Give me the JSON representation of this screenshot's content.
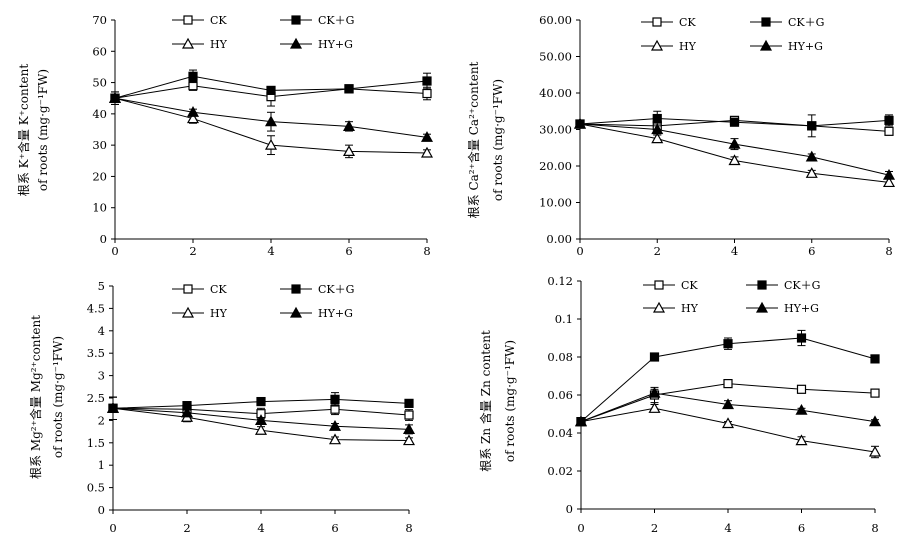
{
  "chart_data": [
    {
      "type": "line",
      "x": [
        0,
        2,
        4,
        6,
        8
      ],
      "ylim": [
        0,
        70
      ],
      "yticks": [
        "0",
        "10",
        "20",
        "30",
        "40",
        "50",
        "60",
        "70"
      ],
      "xticks": [
        "0",
        "2",
        "4",
        "6",
        "8"
      ],
      "ylabel_line1": "根系 K⁺含量 K⁺content",
      "ylabel_line2": "of roots (mg·g⁻¹FW)",
      "series": [
        {
          "name": "CK",
          "marker": "square-open",
          "values": [
            45,
            49,
            45.5,
            48,
            46.5
          ],
          "err": [
            2,
            1.5,
            3,
            1,
            2
          ]
        },
        {
          "name": "CK＋G",
          "marker": "square-filled",
          "values": [
            45,
            52,
            47.5,
            48,
            50.5
          ],
          "err": [
            2,
            2,
            1,
            1,
            2.5
          ]
        },
        {
          "name": "HY",
          "marker": "triangle-open",
          "values": [
            45,
            38.5,
            30,
            28,
            27.5
          ],
          "err": [
            2,
            1.5,
            3,
            2,
            1
          ]
        },
        {
          "name": "HY+G",
          "marker": "triangle-filled",
          "values": [
            45,
            40.5,
            37.5,
            36,
            32.5
          ],
          "err": [
            2,
            1,
            3,
            1.5,
            1
          ]
        }
      ]
    },
    {
      "type": "line",
      "x": [
        0,
        2,
        4,
        6,
        8
      ],
      "ylim": [
        0,
        60
      ],
      "yticks": [
        "0.00",
        "10.00",
        "20.00",
        "30.00",
        "40.00",
        "50.00",
        "60.00"
      ],
      "xticks": [
        "0",
        "2",
        "4",
        "6",
        "8"
      ],
      "ylabel_line1": "根系 Ca²⁺含量 Ca²⁺content",
      "ylabel_line2": "of roots (mg·g⁻¹FW)",
      "series": [
        {
          "name": "CK",
          "marker": "square-open",
          "values": [
            31.5,
            31,
            32.5,
            31,
            29.5
          ],
          "err": [
            1,
            1.5,
            1,
            1,
            1
          ]
        },
        {
          "name": "CK＋G",
          "marker": "square-filled",
          "values": [
            31.5,
            33,
            32,
            31,
            32.5
          ],
          "err": [
            1,
            2,
            1,
            3,
            1.5
          ]
        },
        {
          "name": "HY",
          "marker": "triangle-open",
          "values": [
            31.5,
            27.5,
            21.5,
            18,
            15.5
          ],
          "err": [
            1,
            1,
            1,
            0.8,
            1
          ]
        },
        {
          "name": "HY+G",
          "marker": "triangle-filled",
          "values": [
            31.5,
            30,
            26,
            22.5,
            17.5
          ],
          "err": [
            1,
            1.5,
            1.5,
            0.8,
            1
          ]
        }
      ]
    },
    {
      "type": "line",
      "x": [
        0,
        2,
        4,
        6,
        8
      ],
      "ylim": [
        0,
        5
      ],
      "yticks": [
        "0",
        "0.5",
        "1",
        "1.5",
        "2",
        "2.5",
        "3",
        "3.5",
        "4",
        "4.5",
        "5"
      ],
      "xticks": [
        "0",
        "2",
        "4",
        "6",
        "8"
      ],
      "ylabel_line1": "根系 Mg²⁺含量 Mg²⁺content",
      "ylabel_line2": "of roots (mg·g⁻¹FW)",
      "series": [
        {
          "name": "CK",
          "marker": "square-open",
          "values": [
            2.27,
            2.25,
            2.15,
            2.25,
            2.12
          ],
          "err": [
            0.25,
            0.08,
            0.12,
            0.12,
            0.12
          ]
        },
        {
          "name": "CK＋G",
          "marker": "square-filled",
          "values": [
            2.27,
            2.33,
            2.42,
            2.47,
            2.38
          ],
          "err": [
            0.25,
            0.06,
            0.08,
            0.15,
            0.08
          ]
        },
        {
          "name": "HY",
          "marker": "triangle-open",
          "values": [
            2.27,
            2.07,
            1.78,
            1.57,
            1.55
          ],
          "err": [
            0.25,
            0.1,
            0.08,
            0.06,
            0.06
          ]
        },
        {
          "name": "HY+G",
          "marker": "triangle-filled",
          "values": [
            2.27,
            2.17,
            2.0,
            1.87,
            1.8
          ],
          "err": [
            0.25,
            0.06,
            0.06,
            0.06,
            0.1
          ]
        }
      ]
    },
    {
      "type": "line",
      "x": [
        0,
        2,
        4,
        6,
        8
      ],
      "ylim": [
        0,
        0.12
      ],
      "yticks": [
        "0",
        "0.02",
        "0.04",
        "0.06",
        "0.08",
        "0.1",
        "0.12"
      ],
      "xticks": [
        "0",
        "2",
        "4",
        "6",
        "8"
      ],
      "ylabel_line1": "根系 Zn 含量 Zn content",
      "ylabel_line2": "of roots (mg·g⁻¹FW)",
      "series": [
        {
          "name": "CK",
          "marker": "square-open",
          "values": [
            0.046,
            0.06,
            0.066,
            0.063,
            0.061
          ],
          "err": [
            0.002,
            0.004,
            0.001,
            0.001,
            0.001
          ]
        },
        {
          "name": "CK＋G",
          "marker": "square-filled",
          "values": [
            0.046,
            0.08,
            0.087,
            0.09,
            0.079
          ],
          "err": [
            0.002,
            0.002,
            0.003,
            0.004,
            0.002
          ]
        },
        {
          "name": "HY",
          "marker": "triangle-open",
          "values": [
            0.046,
            0.053,
            0.045,
            0.036,
            0.03
          ],
          "err": [
            0.002,
            0.002,
            0.001,
            0.002,
            0.003
          ]
        },
        {
          "name": "HY+G",
          "marker": "triangle-filled",
          "values": [
            0.046,
            0.061,
            0.055,
            0.052,
            0.046
          ],
          "err": [
            0.002,
            0.002,
            0.002,
            0.001,
            0.001
          ]
        }
      ]
    }
  ]
}
